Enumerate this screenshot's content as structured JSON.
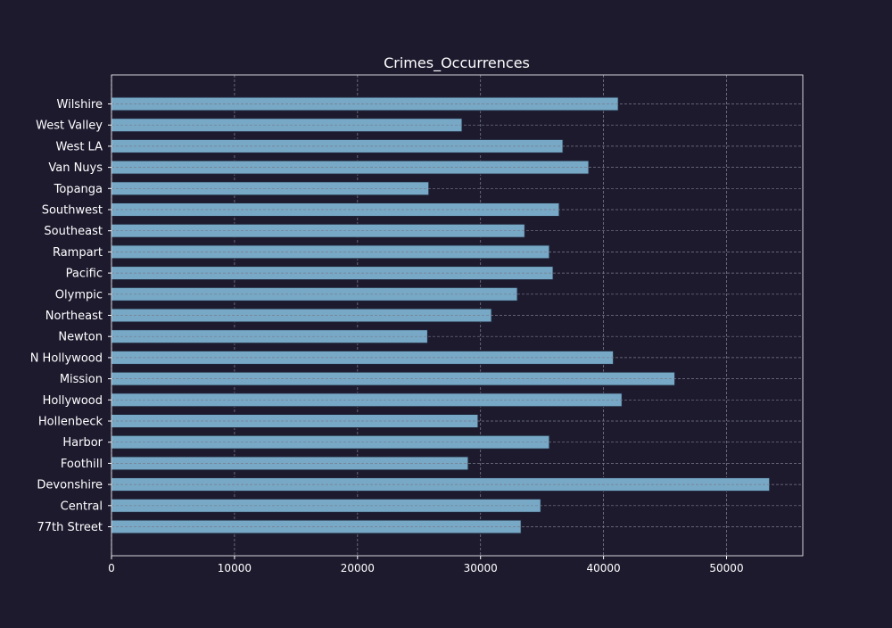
{
  "chart_data": {
    "type": "bar",
    "orientation": "horizontal",
    "title": "Crimes_Occurrences",
    "xlabel": "",
    "ylabel": "",
    "categories": [
      "77th Street",
      "Central",
      "Devonshire",
      "Foothill",
      "Harbor",
      "Hollenbeck",
      "Hollywood",
      "Mission",
      "N Hollywood",
      "Newton",
      "Northeast",
      "Olympic",
      "Pacific",
      "Rampart",
      "Southeast",
      "Southwest",
      "Topanga",
      "Van Nuys",
      "West LA",
      "West Valley",
      "Wilshire"
    ],
    "values": [
      33300,
      34900,
      53500,
      29000,
      35600,
      29800,
      41500,
      45800,
      40800,
      25700,
      30900,
      33000,
      35900,
      35600,
      33600,
      36400,
      25800,
      38800,
      36700,
      28500,
      41200
    ],
    "xlim": [
      0,
      56200
    ],
    "xticks": [
      0,
      10000,
      20000,
      30000,
      40000,
      50000
    ],
    "grid": true,
    "legend": "none",
    "colors": {
      "background": "#1e1a2e",
      "bar": "#77a9c6",
      "bar_edge": "#1e2438",
      "axis": "#ffffff",
      "grid": "#7a7a8c",
      "text": "#ffffff"
    }
  }
}
